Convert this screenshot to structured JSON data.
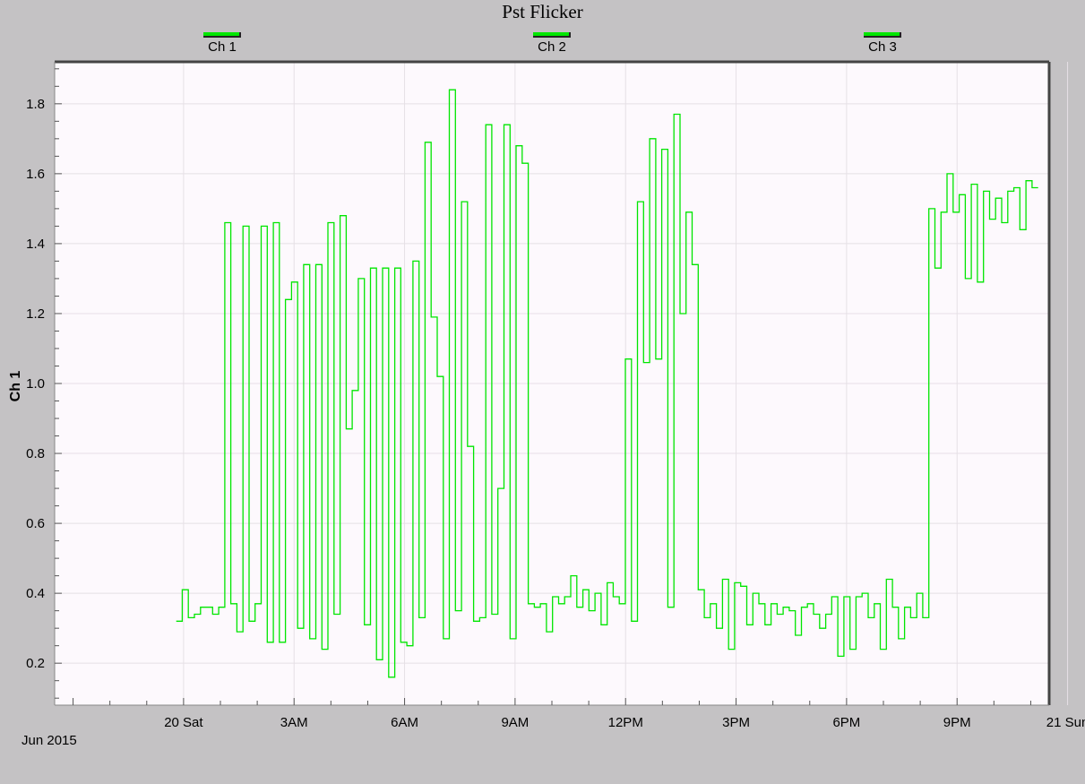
{
  "chart_data": {
    "type": "line",
    "title": "Pst Flicker",
    "ylabel": "Ch 1",
    "xlabel": "",
    "date_label": "Jun 2015",
    "legend": [
      {
        "name": "Ch 1",
        "color": "#00e600"
      },
      {
        "name": "Ch 2",
        "color": "#00e600"
      },
      {
        "name": "Ch 3",
        "color": "#00e600"
      }
    ],
    "legend_placement": "top",
    "grid": true,
    "background_color": "#c4c2c4",
    "plot_color": "#fdf9fd",
    "line_color": "#00e600",
    "ylim": [
      0.08,
      1.92
    ],
    "xlim_hours": [
      -3.5,
      23.5
    ],
    "x_ticks": [
      {
        "hour": 0,
        "label": "20 Sat"
      },
      {
        "hour": 3,
        "label": "3AM"
      },
      {
        "hour": 6,
        "label": "6AM"
      },
      {
        "hour": 9,
        "label": "9AM"
      },
      {
        "hour": 12,
        "label": "12PM"
      },
      {
        "hour": 15,
        "label": "3PM"
      },
      {
        "hour": 18,
        "label": "6PM"
      },
      {
        "hour": 21,
        "label": "9PM"
      },
      {
        "hour": 24,
        "label": "21 Sun"
      }
    ],
    "y_ticks": [
      "0.2",
      "0.4",
      "0.6",
      "0.8",
      "1.0",
      "1.2",
      "1.4",
      "1.6",
      "1.8"
    ],
    "series": [
      {
        "name": "Ch 1",
        "values": [
          0.32,
          0.41,
          0.33,
          0.34,
          0.36,
          0.36,
          0.34,
          0.36,
          1.46,
          0.37,
          0.29,
          1.45,
          0.32,
          0.37,
          1.45,
          0.26,
          1.46,
          0.26,
          1.24,
          1.29,
          0.3,
          1.34,
          0.27,
          1.34,
          0.24,
          1.46,
          0.34,
          1.48,
          0.87,
          0.98,
          1.3,
          0.31,
          1.33,
          0.21,
          1.33,
          0.16,
          1.33,
          0.26,
          0.25,
          1.35,
          0.33,
          1.69,
          1.19,
          1.02,
          0.27,
          1.84,
          0.35,
          1.52,
          0.82,
          0.32,
          0.33,
          1.74,
          0.34,
          0.7,
          1.74,
          0.27,
          1.68,
          1.63,
          0.37,
          0.36,
          0.37,
          0.29,
          0.39,
          0.37,
          0.39,
          0.45,
          0.36,
          0.41,
          0.35,
          0.4,
          0.31,
          0.43,
          0.39,
          0.37,
          1.07,
          0.32,
          1.52,
          1.06,
          1.7,
          1.07,
          1.67,
          0.36,
          1.77,
          1.2,
          1.49,
          1.34,
          0.41,
          0.33,
          0.37,
          0.3,
          0.44,
          0.24,
          0.43,
          0.42,
          0.31,
          0.4,
          0.37,
          0.31,
          0.37,
          0.34,
          0.36,
          0.35,
          0.28,
          0.36,
          0.37,
          0.34,
          0.3,
          0.34,
          0.39,
          0.22,
          0.39,
          0.24,
          0.39,
          0.4,
          0.33,
          0.37,
          0.24,
          0.44,
          0.36,
          0.27,
          0.36,
          0.33,
          0.4,
          0.33,
          1.5,
          1.33,
          1.49,
          1.6,
          1.49,
          1.54,
          1.3,
          1.57,
          1.29,
          1.55,
          1.47,
          1.53,
          1.46,
          1.55,
          1.56,
          1.44,
          1.58,
          1.56
        ]
      }
    ]
  }
}
